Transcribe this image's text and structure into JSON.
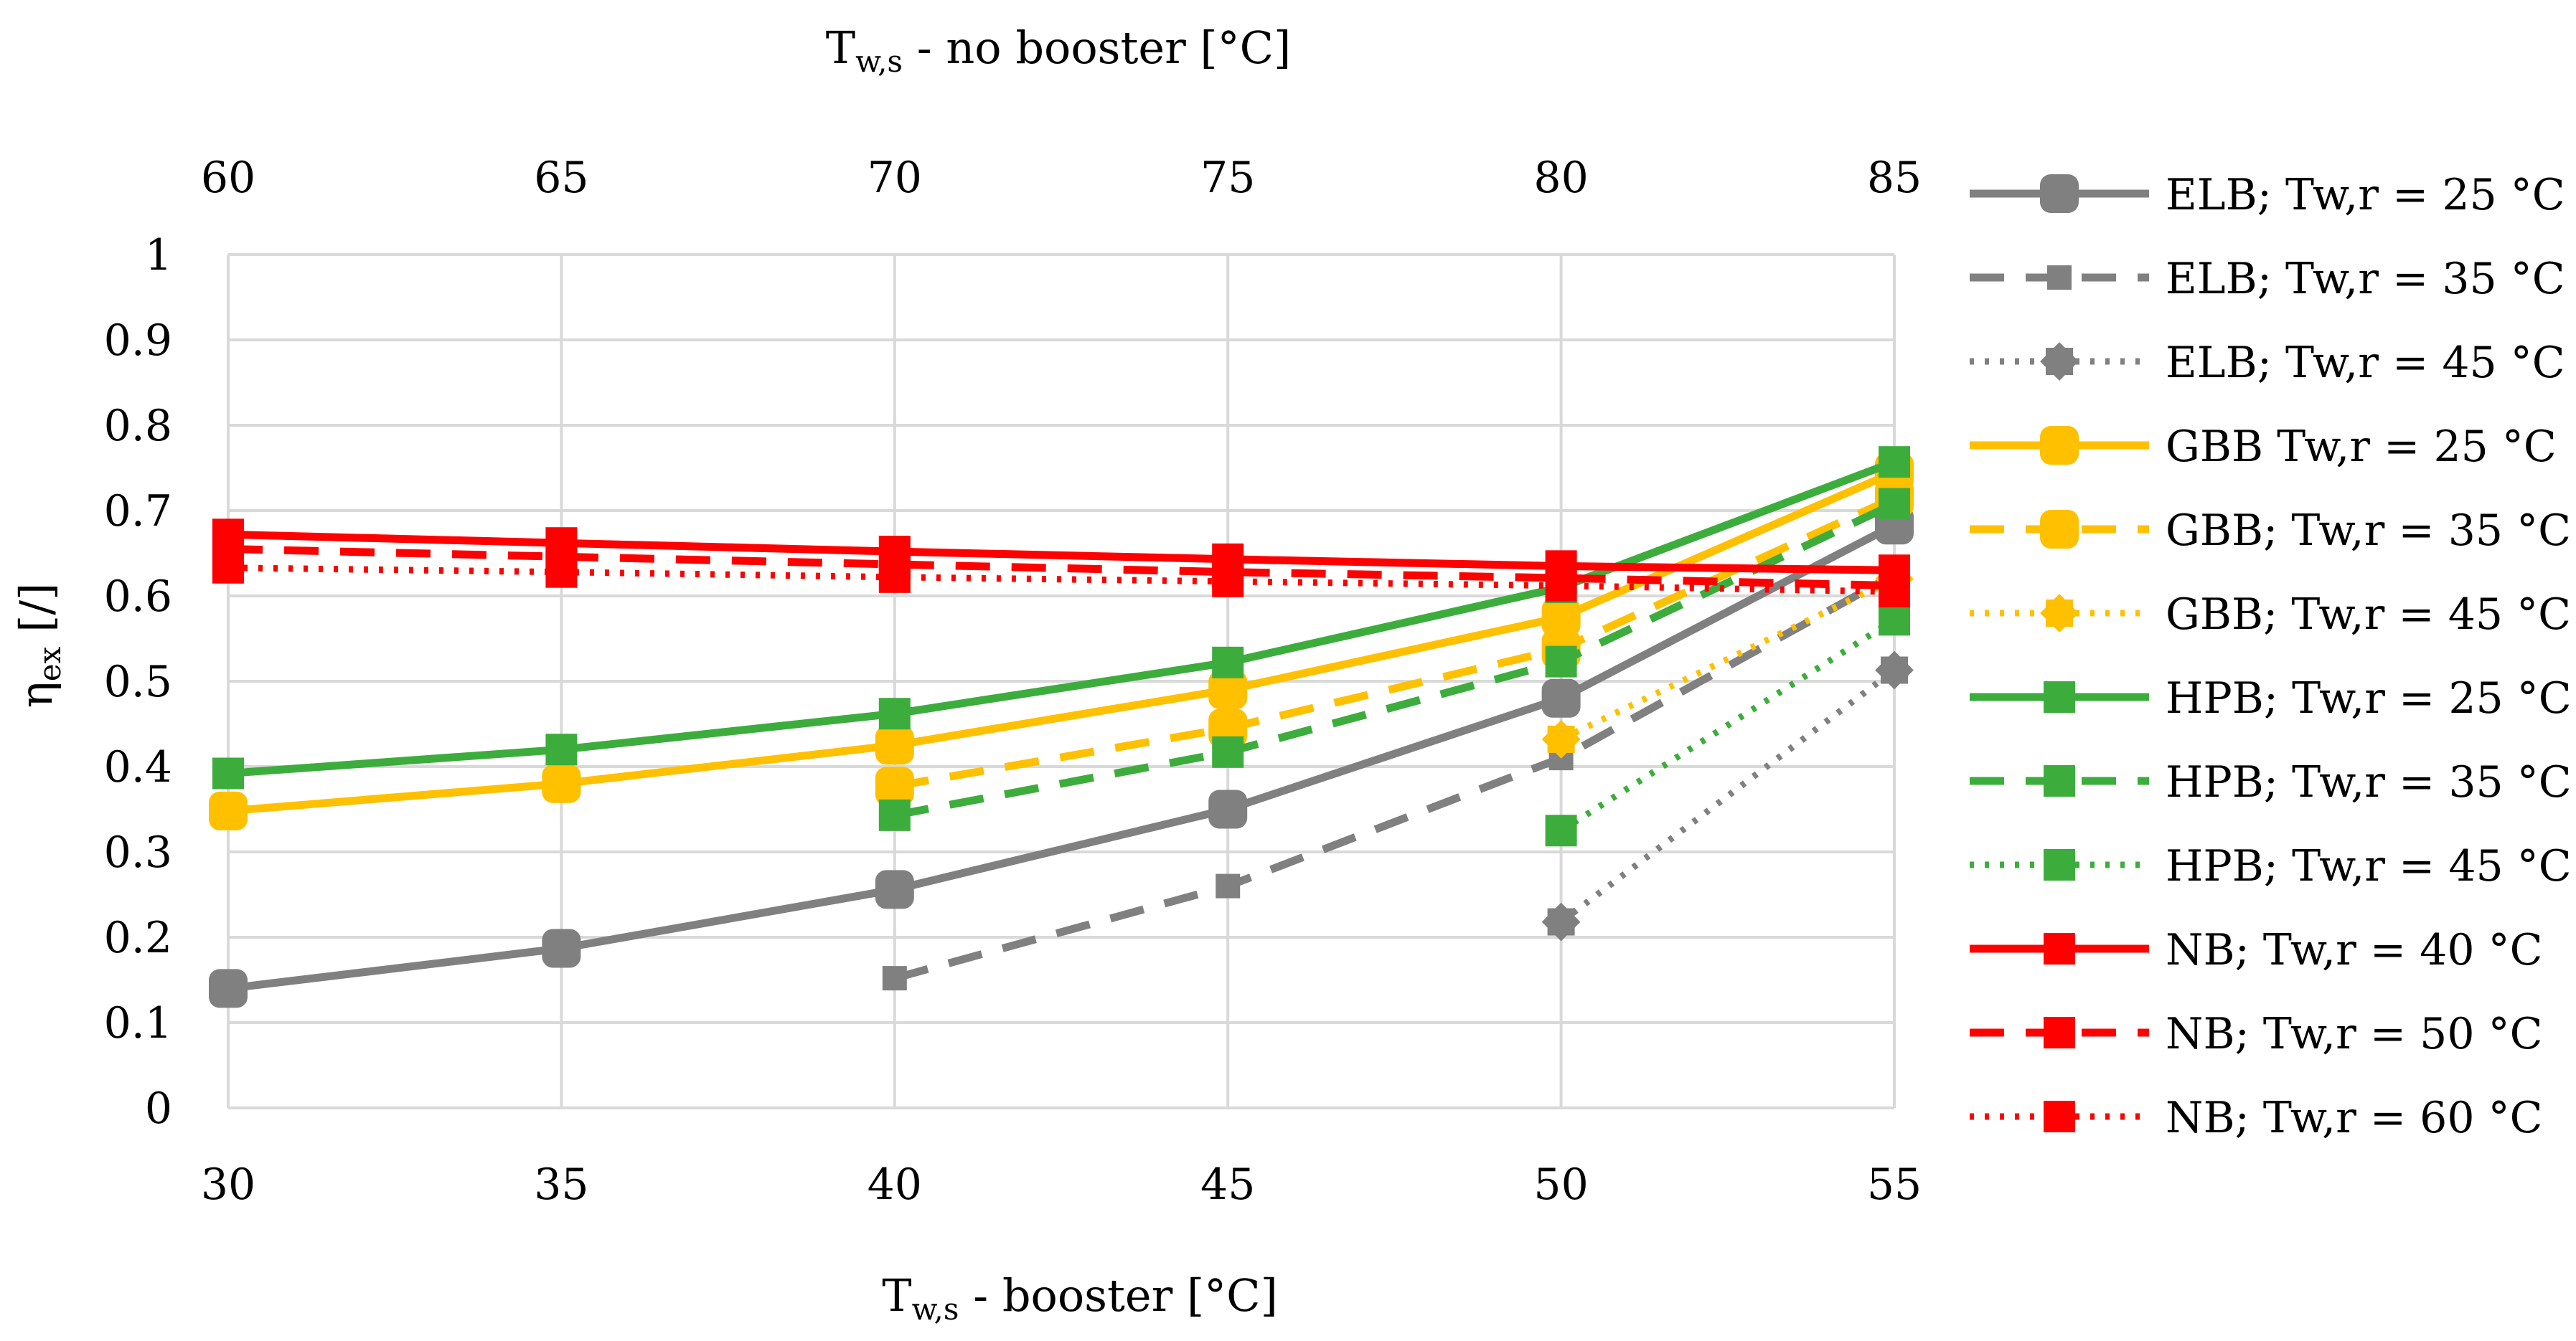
{
  "chart_data": {
    "type": "line",
    "x_bottom": {
      "label_main": "T",
      "label_sub": "w,s",
      "label_rest": " - booster [°C]",
      "ticks": [
        30,
        35,
        40,
        45,
        50,
        55
      ],
      "range": [
        30,
        55
      ]
    },
    "x_top": {
      "label_main": "T",
      "label_sub": "w,s",
      "label_rest": " - no booster [°C]",
      "ticks": [
        60,
        65,
        70,
        75,
        80,
        85
      ],
      "range": [
        60,
        85
      ]
    },
    "y": {
      "label_main": "η",
      "label_sub": "ex",
      "label_rest": " [/]",
      "ticks": [
        "0",
        "0.1",
        "0.2",
        "0.3",
        "0.4",
        "0.5",
        "0.6",
        "0.7",
        "0.8",
        "0.9",
        "1"
      ],
      "range": [
        0,
        1
      ]
    },
    "grid": true,
    "legend_position": "right",
    "series": [
      {
        "name": "ELB; Tw,r = 25 °C",
        "axis": "bottom",
        "color": "#808080",
        "dash": "solid",
        "marker": "big",
        "x": [
          30,
          35,
          40,
          45,
          50,
          55
        ],
        "y": [
          0.14,
          0.187,
          0.256,
          0.35,
          0.48,
          0.683
        ]
      },
      {
        "name": "ELB; Tw,r = 35 °C",
        "axis": "bottom",
        "color": "#808080",
        "dash": "dashed",
        "marker": "small",
        "x": [
          40,
          45,
          50,
          55
        ],
        "y": [
          0.152,
          0.26,
          0.41,
          0.625
        ]
      },
      {
        "name": "ELB; Tw,r = 45 °C",
        "axis": "bottom",
        "color": "#808080",
        "dash": "dotted",
        "marker": "star",
        "x": [
          50,
          55
        ],
        "y": [
          0.218,
          0.513
        ]
      },
      {
        "name": "GBB Tw,r = 25 °C",
        "axis": "bottom",
        "color": "#ffc000",
        "dash": "solid",
        "marker": "big",
        "x": [
          30,
          35,
          40,
          45,
          50,
          55
        ],
        "y": [
          0.348,
          0.38,
          0.425,
          0.49,
          0.575,
          0.745
        ]
      },
      {
        "name": "GBB; Tw,r = 35 °C",
        "axis": "bottom",
        "color": "#ffc000",
        "dash": "dashed",
        "marker": "big",
        "x": [
          40,
          45,
          50,
          55
        ],
        "y": [
          0.377,
          0.445,
          0.538,
          0.715
        ]
      },
      {
        "name": "GBB; Tw,r = 45 °C",
        "axis": "bottom",
        "color": "#ffc000",
        "dash": "dotted",
        "marker": "star",
        "x": [
          50,
          55
        ],
        "y": [
          0.432,
          0.62
        ]
      },
      {
        "name": "HPB; Tw,r = 25 °C",
        "axis": "bottom",
        "color": "#3cad3c",
        "dash": "solid",
        "marker": "medium",
        "x": [
          30,
          35,
          40,
          45,
          50,
          55
        ],
        "y": [
          0.392,
          0.42,
          0.462,
          0.522,
          0.61,
          0.757
        ]
      },
      {
        "name": "HPB; Tw,r = 35 °C",
        "axis": "bottom",
        "color": "#3cad3c",
        "dash": "dashed",
        "marker": "medium",
        "x": [
          40,
          45,
          50,
          55
        ],
        "y": [
          0.343,
          0.417,
          0.523,
          0.708
        ]
      },
      {
        "name": "HPB; Tw,r = 45 °C",
        "axis": "bottom",
        "color": "#3cad3c",
        "dash": "dotted",
        "marker": "medium",
        "x": [
          50,
          55
        ],
        "y": [
          0.325,
          0.572
        ]
      },
      {
        "name": "NB; Tw,r = 40 °C",
        "axis": "top",
        "color": "#ff0000",
        "dash": "solid",
        "marker": "medium",
        "x": [
          60,
          65,
          70,
          75,
          80,
          85
        ],
        "y": [
          0.672,
          0.662,
          0.652,
          0.643,
          0.635,
          0.63
        ]
      },
      {
        "name": "NB; Tw,r = 50 °C",
        "axis": "top",
        "color": "#ff0000",
        "dash": "dashed",
        "marker": "medium",
        "x": [
          60,
          65,
          70,
          75,
          80,
          85
        ],
        "y": [
          0.655,
          0.646,
          0.637,
          0.628,
          0.621,
          0.612
        ]
      },
      {
        "name": "NB; Tw,r = 60 °C",
        "axis": "top",
        "color": "#ff0000",
        "dash": "dotted",
        "marker": "medium",
        "x": [
          60,
          65,
          70,
          75,
          80,
          85
        ],
        "y": [
          0.633,
          0.628,
          0.622,
          0.617,
          0.612,
          0.605
        ]
      }
    ]
  }
}
